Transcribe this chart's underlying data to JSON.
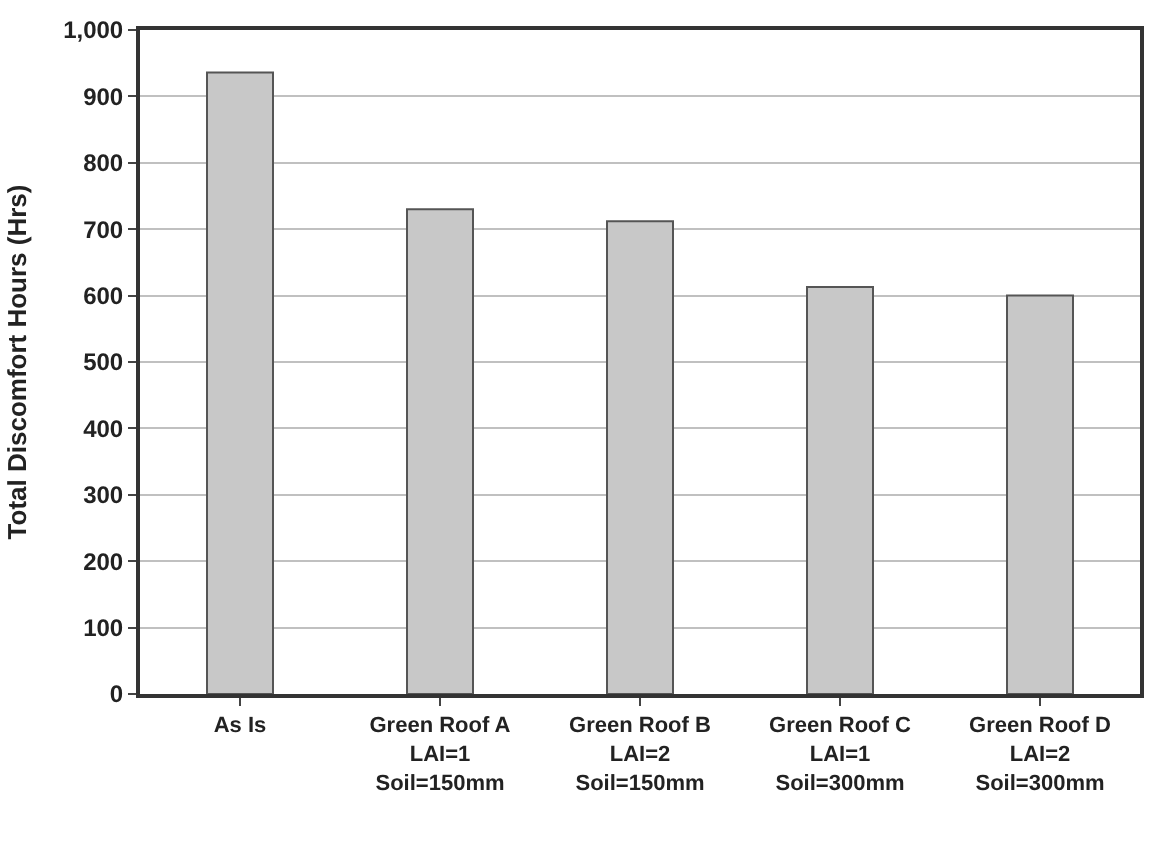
{
  "chart_data": {
    "type": "bar",
    "ylabel": "Total Discomfort Hours (Hrs)",
    "categories": [
      "As Is",
      "Green Roof A\nLAI=1\nSoil=150mm",
      "Green Roof B\nLAI=2\nSoil=150mm",
      "Green Roof C\nLAI=1\nSoil=300mm",
      "Green Roof D\nLAI=2\nSoil=300mm"
    ],
    "values": [
      936,
      730,
      712,
      613,
      600
    ],
    "color": "#c8c8c8",
    "ylim": [
      0,
      1000
    ],
    "yticks": [
      0,
      100,
      200,
      300,
      400,
      500,
      600,
      700,
      800,
      900,
      {
        "value": 1000,
        "label": "1,000"
      }
    ],
    "grid": "y"
  }
}
